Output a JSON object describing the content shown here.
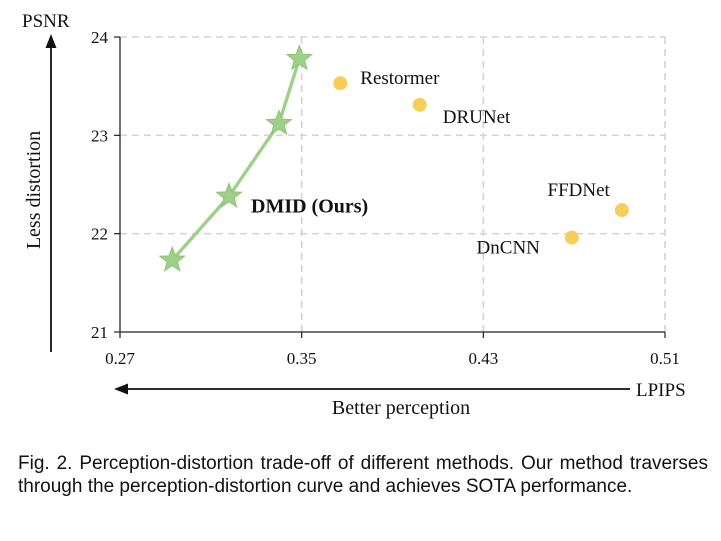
{
  "chart_data": {
    "type": "scatter",
    "x_axis_label": "LPIPS",
    "y_axis_label": "PSNR",
    "x_direction_label": "Better perception",
    "y_direction_label": "Less distortion",
    "xlim": [
      0.27,
      0.51
    ],
    "ylim": [
      21,
      24
    ],
    "x_ticks": [
      "0.27",
      "0.35",
      "0.43",
      "0.51"
    ],
    "y_ticks": [
      "21",
      "22",
      "23",
      "24"
    ],
    "grid": "dashed",
    "series": [
      {
        "name": "DMID (Ours)",
        "marker": "star",
        "connected": true,
        "color": "#9fd08a",
        "points": [
          {
            "x": 0.293,
            "y": 21.73
          },
          {
            "x": 0.318,
            "y": 22.38
          },
          {
            "x": 0.34,
            "y": 23.12
          },
          {
            "x": 0.349,
            "y": 23.78
          }
        ]
      },
      {
        "name": "",
        "marker": "circle",
        "connected": false,
        "color": "#f5cf5a",
        "points": [
          {
            "x": 0.367,
            "y": 23.53,
            "label": "Restormer"
          },
          {
            "x": 0.402,
            "y": 23.31,
            "label": "DRUNet"
          },
          {
            "x": 0.491,
            "y": 22.24,
            "label": "FFDNet"
          },
          {
            "x": 0.469,
            "y": 21.96,
            "label": "DnCNN"
          }
        ]
      }
    ]
  },
  "caption": "Fig. 2. Perception-distortion trade-off of different methods. Our method traverses through the perception-distortion curve and achieves SOTA performance."
}
